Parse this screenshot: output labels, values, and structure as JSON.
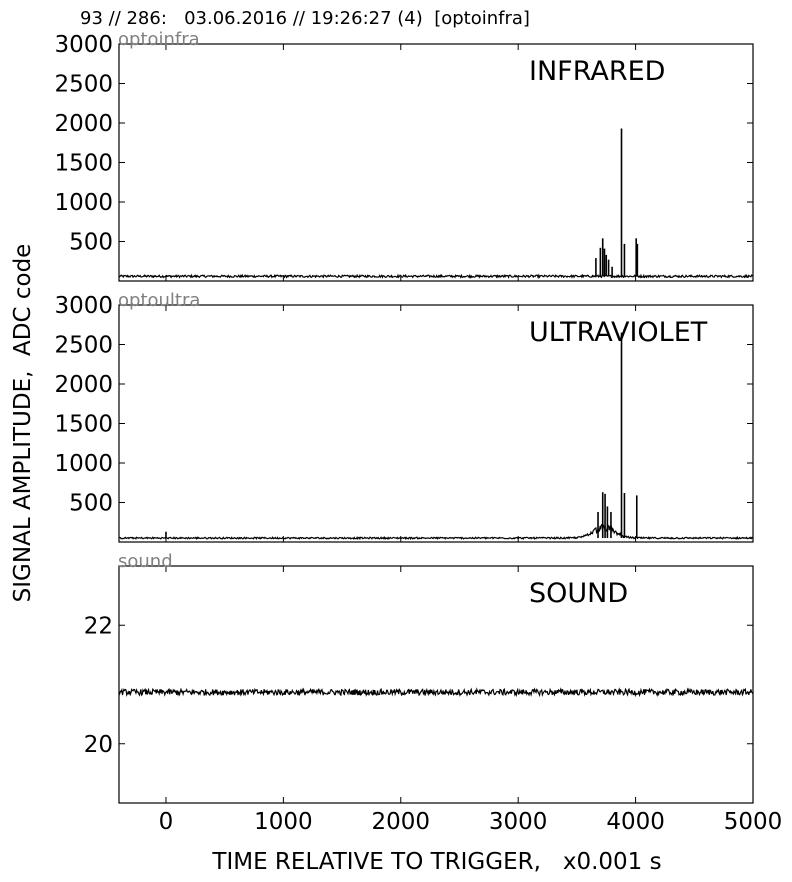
{
  "header_text": "93 // 286:   03.06.2016 // 19:26:27 (4)  [optoinfra]",
  "ylabel": "SIGNAL AMPLITUDE,  ADC code",
  "xlabel": "TIME RELATIVE TO TRIGGER,   x0.001 s",
  "colors": {
    "line": "#000000",
    "corner_label": "#808080",
    "background": "#ffffff"
  },
  "chart_data": [
    {
      "type": "line",
      "corner_label": "optoinfra",
      "title": "INFRARED",
      "xlim": [
        -400,
        5000
      ],
      "ylim": [
        0,
        3000
      ],
      "xticks": [
        0,
        1000,
        2000,
        3000,
        4000,
        5000
      ],
      "xtick_labels_visible": false,
      "yticks": [
        500,
        1000,
        1500,
        2000,
        2500,
        3000
      ],
      "ytick_labels": [
        "500",
        "1000",
        "1500",
        "2000",
        "2500",
        "3000"
      ],
      "baseline": 60,
      "noise": 14,
      "spikes": [
        {
          "x": 3662,
          "y": 290
        },
        {
          "x": 3700,
          "y": 420
        },
        {
          "x": 3720,
          "y": 540
        },
        {
          "x": 3735,
          "y": 410
        },
        {
          "x": 3750,
          "y": 330
        },
        {
          "x": 3770,
          "y": 270
        },
        {
          "x": 3800,
          "y": 180
        },
        {
          "x": 3880,
          "y": 1930
        },
        {
          "x": 3905,
          "y": 470
        },
        {
          "x": 4005,
          "y": 540
        },
        {
          "x": 4015,
          "y": 470
        }
      ],
      "grid": false
    },
    {
      "type": "line",
      "corner_label": "optoultra",
      "title": "ULTRAVIOLET",
      "xlim": [
        -400,
        5000
      ],
      "ylim": [
        0,
        3000
      ],
      "xticks": [
        0,
        1000,
        2000,
        3000,
        4000,
        5000
      ],
      "xtick_labels_visible": false,
      "yticks": [
        500,
        1000,
        1500,
        2000,
        2500,
        3000
      ],
      "ytick_labels": [
        "500",
        "1000",
        "1500",
        "2000",
        "2500",
        "3000"
      ],
      "baseline": 50,
      "noise": 10,
      "bump": {
        "center": 3730,
        "width": 130,
        "height": 130
      },
      "spikes": [
        {
          "x": 0,
          "y": 130
        },
        {
          "x": 3680,
          "y": 380
        },
        {
          "x": 3720,
          "y": 630
        },
        {
          "x": 3740,
          "y": 610
        },
        {
          "x": 3760,
          "y": 450
        },
        {
          "x": 3790,
          "y": 380
        },
        {
          "x": 3880,
          "y": 2650
        },
        {
          "x": 3905,
          "y": 620
        },
        {
          "x": 4010,
          "y": 590
        }
      ],
      "grid": false
    },
    {
      "type": "line",
      "corner_label": "sound",
      "title": "SOUND",
      "xlim": [
        -400,
        5000
      ],
      "ylim": [
        19,
        23
      ],
      "xticks": [
        0,
        1000,
        2000,
        3000,
        4000,
        5000
      ],
      "xtick_labels": [
        "0",
        "1000",
        "2000",
        "3000",
        "4000",
        "5000"
      ],
      "xtick_labels_visible": true,
      "yticks": [
        20,
        22
      ],
      "ytick_labels": [
        "20",
        "22"
      ],
      "baseline": 20.87,
      "noise": 0.05,
      "spikes": [],
      "grid": false
    }
  ]
}
